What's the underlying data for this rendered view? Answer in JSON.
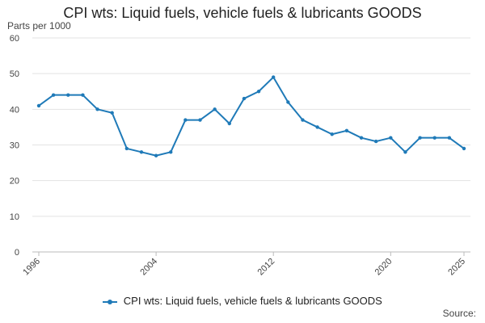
{
  "chart_data": {
    "type": "line",
    "title": "CPI wts: Liquid fuels, vehicle fuels & lubricants GOODS",
    "ylabel": "Parts per 1000",
    "xlabel": "",
    "x": [
      1996,
      1997,
      1998,
      1999,
      2000,
      2001,
      2002,
      2003,
      2004,
      2005,
      2006,
      2007,
      2008,
      2009,
      2010,
      2011,
      2012,
      2013,
      2014,
      2015,
      2016,
      2017,
      2018,
      2019,
      2020,
      2021,
      2022,
      2023,
      2024,
      2025
    ],
    "series": [
      {
        "name": "CPI wts: Liquid fuels, vehicle fuels & lubricants GOODS",
        "values": [
          41,
          44,
          44,
          44,
          40,
          39,
          29,
          28,
          27,
          28,
          37,
          37,
          40,
          36,
          43,
          45,
          49,
          42,
          37,
          35,
          33,
          34,
          32,
          31,
          32,
          28,
          32,
          32,
          32,
          29
        ]
      }
    ],
    "ylim": [
      0,
      60
    ],
    "yticks": [
      0,
      10,
      20,
      30,
      40,
      50,
      60
    ],
    "xticks": [
      1996,
      2004,
      2012,
      2020,
      2025
    ],
    "grid": "horizontal",
    "legend_position": "bottom",
    "colors": {
      "series": "#1f7ab8",
      "grid": "#e3e3e3",
      "axis": "#bbbbbb"
    }
  },
  "source_label": "Source:"
}
